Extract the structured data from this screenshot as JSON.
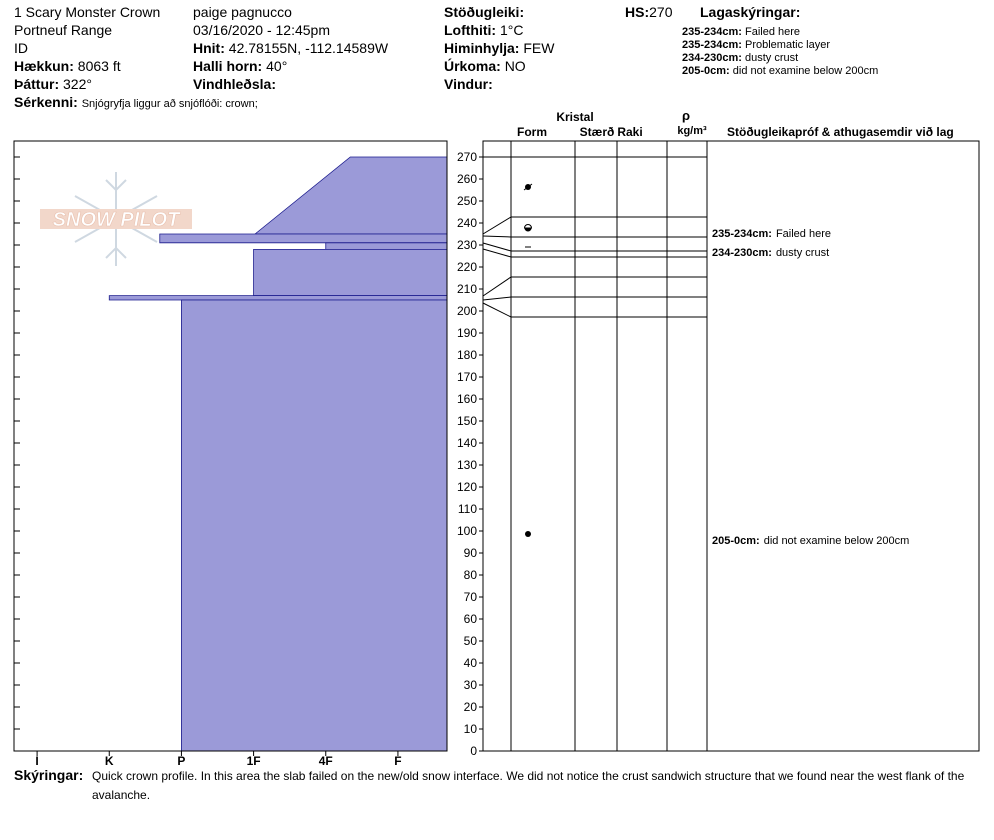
{
  "header": {
    "location": "1 Scary Monster Crown",
    "range": "Portneuf Range",
    "state": "ID",
    "elevation_label": "Hækkun:",
    "elevation": "8063 ft",
    "aspect_label": "Þáttur:",
    "aspect": "322°",
    "features_label": "Sérkenni:",
    "features": "Snjógryfja liggur að snjóflóði: crown;",
    "observer": "paige pagnucco",
    "date": "03/16/2020 - 12:45pm",
    "coords_label": "Hnit:",
    "coords": "42.78155N, -112.14589W",
    "slope_label": "Halli horn:",
    "slope": "40°",
    "wind_loading_label": "Vindhleðsla:",
    "stability_label": "Stöðugleiki:",
    "air_temp_label": "Lofthiti:",
    "air_temp": "1°C",
    "sky_label": "Himinhylja:",
    "sky": "FEW",
    "precip_label": "Úrkoma:",
    "precip": "NO",
    "wind_label": "Vindur:",
    "hs_label": "HS:",
    "hs": "270",
    "layer_notes_title": "Lagaskýringar:",
    "layer_notes": [
      {
        "range": "235-234cm:",
        "text": "Failed here"
      },
      {
        "range": "235-234cm:",
        "text": "Problematic layer"
      },
      {
        "range": "234-230cm:",
        "text": "dusty crust"
      },
      {
        "range": "205-0cm:",
        "text": "did not examine below 200cm"
      }
    ]
  },
  "logo": "SNOW PILOT",
  "columns": {
    "crystal": "Kristal",
    "form": "Form",
    "size": "Stærð",
    "moisture": "Raki",
    "rho": "ρ",
    "density_unit": "kg/m³",
    "tests": "Stöðugleikapróf & athugasemdir við lag"
  },
  "comments": [
    {
      "range": "235-234cm:",
      "text": "Failed here"
    },
    {
      "range": "234-230cm:",
      "text": "dusty crust"
    },
    {
      "range": "205-0cm:",
      "text": "did not examine below 200cm"
    }
  ],
  "footer": {
    "label": "Skýringar:",
    "text": "Quick crown profile. In this area the slab failed on the new/old snow interface. We did not notice the crust sandwich structure that we found near the west flank of the avalanche."
  },
  "chart_data": {
    "type": "profile",
    "color": "#9b9ad8",
    "ylim": [
      0,
      270
    ],
    "yticks": [
      0,
      10,
      20,
      30,
      40,
      50,
      60,
      70,
      80,
      90,
      100,
      110,
      120,
      130,
      140,
      150,
      160,
      170,
      180,
      190,
      200,
      210,
      220,
      230,
      240,
      250,
      260,
      270
    ],
    "xlim": [
      6.32,
      0.32
    ],
    "xticks": [
      {
        "value": 6,
        "label": "I"
      },
      {
        "value": 5,
        "label": "K"
      },
      {
        "value": 4,
        "label": "P"
      },
      {
        "value": 3,
        "label": "1F"
      },
      {
        "value": 2,
        "label": "4F"
      },
      {
        "value": 1,
        "label": "F"
      }
    ],
    "layers": [
      {
        "top": 270,
        "bottom": 235,
        "hardness_top": 1.66,
        "hardness_bottom": 2.98
      },
      {
        "top": 235,
        "bottom": 231,
        "hardness_top": 4.3,
        "hardness_bottom": 4.3
      },
      {
        "top": 231,
        "bottom": 228,
        "hardness_top": 2,
        "hardness_bottom": 2
      },
      {
        "top": 228,
        "bottom": 207,
        "hardness_top": 3,
        "hardness_bottom": 3
      },
      {
        "top": 207,
        "bottom": 205,
        "hardness_top": 5,
        "hardness_bottom": 5
      },
      {
        "top": 205,
        "bottom": 0,
        "hardness_top": 4,
        "hardness_bottom": 4
      }
    ]
  }
}
